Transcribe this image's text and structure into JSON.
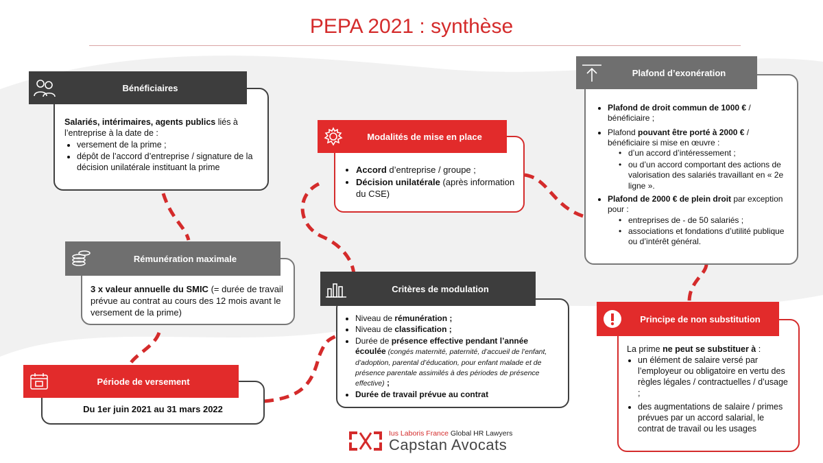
{
  "title": "PEPA 2021 : synthèse",
  "colors": {
    "red": "#e22b2b",
    "dark": "#3d3d3d",
    "mid_gray": "#6f6f6f"
  },
  "beneficiaires": {
    "header": "Bénéficiaires",
    "icon": "people-icon",
    "intro_bold": "Salariés, intérimaires, agents publics",
    "intro_rest": " liés à l’entreprise à la date de :",
    "items": [
      "versement de la prime ;",
      "dépôt de l’accord d’entreprise / signature de la décision unilatérale instituant la prime"
    ]
  },
  "remuneration": {
    "header": "Rémunération maximale",
    "icon": "coins-icon",
    "bold": "3 x valeur annuelle du SMIC",
    "rest": " (= durée de travail prévue au contrat au cours des 12 mois avant le versement de la prime)"
  },
  "periode": {
    "header": "Période de versement",
    "icon": "calendar-icon",
    "text": "Du 1er juin 2021 au 31 mars 2022"
  },
  "modalites": {
    "header": "Modalités de mise en place",
    "icon": "gear-icon",
    "item1_bold": "Accord",
    "item1_rest": " d’entreprise / groupe ;",
    "item2_bold": "Décision unilatérale",
    "item2_rest": " (après information du CSE)"
  },
  "criteres": {
    "header": "Critères de modulation",
    "icon": "bar-chart-icon",
    "i1_a": "Niveau de ",
    "i1_b": "rémunération ;",
    "i2_a": "Niveau de ",
    "i2_b": "classification ;",
    "i3_a": "Durée de ",
    "i3_b": "présence effective pendant l’année écoulée",
    "i3_c": " (congés maternité, paternité, d’accueil de l’enfant, d’adoption, parental d’éducation, pour enfant malade et de présence parentale assimilés à des périodes de présence effective)",
    "i3_d": " ;",
    "i4": "Durée de travail prévue au contrat"
  },
  "plafond": {
    "header": "Plafond d’exonération",
    "icon": "upload-icon",
    "p1_bold": "Plafond de droit commun  de 1000 €",
    "p1_rest": " / bénéficiaire ;",
    "p2_a": "Plafond ",
    "p2_bold": "pouvant être porté à 2000 €",
    "p2_rest": " / bénéficiaire si mise en œuvre :",
    "p2_subs": [
      "d’un accord d’intéressement ;",
      "ou d’un accord comportant des actions de valorisation des salariés travaillant en « 2e ligne »."
    ],
    "p3_bold": "Plafond de 2000 € de plein droit",
    "p3_rest": " par exception pour :",
    "p3_subs": [
      "entreprises de - de 50 salariés ;",
      "associations et fondations d’utilité publique ou d’intérêt général."
    ]
  },
  "principe": {
    "header": "Principe de non substitution",
    "icon": "alert-icon",
    "intro_a": "La prime ",
    "intro_bold": "ne peut se substituer à",
    "intro_c": " :",
    "items": [
      "un élément de salaire versé par l’employeur ou obligatoire en vertu des règles légales / contractuelles / d’usage ;",
      "des augmentations de salaire / primes prévues par un accord salarial, le contrat de travail ou les usages"
    ]
  },
  "logo": {
    "line1_red": "Ius Laboris France",
    "line1_rest": " Global HR Lawyers",
    "line2": "Capstan Avocats"
  }
}
